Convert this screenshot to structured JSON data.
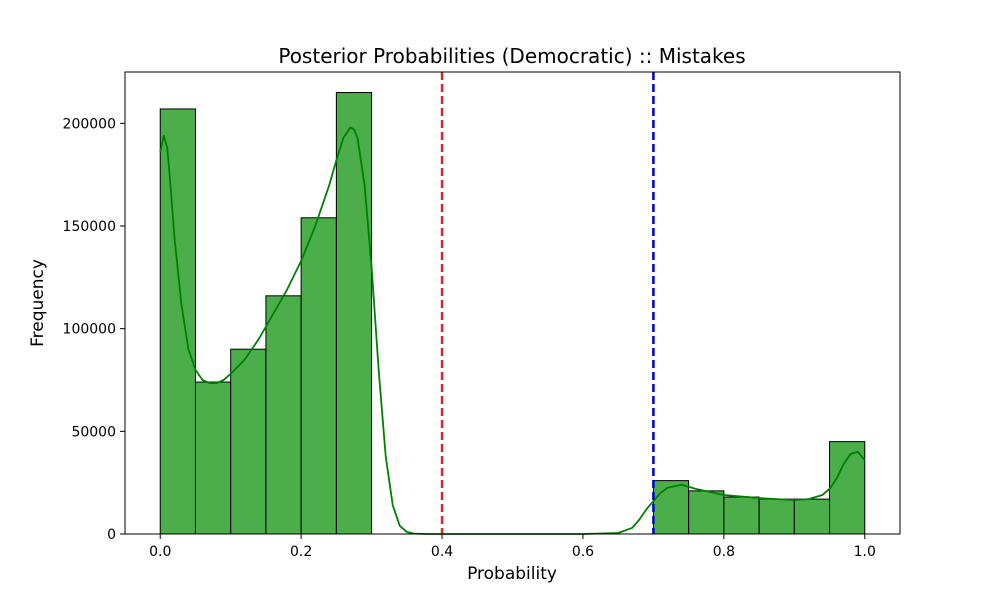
{
  "chart_data": {
    "type": "bar",
    "title": "Posterior Probabilities (Democratic) :: Mistakes",
    "xlabel": "Probability",
    "ylabel": "Frequency",
    "xlim": [
      -0.05,
      1.05
    ],
    "ylim": [
      0,
      225000
    ],
    "xticks": [
      0.0,
      0.2,
      0.4,
      0.6,
      0.8,
      1.0
    ],
    "xtick_labels": [
      "0.0",
      "0.2",
      "0.4",
      "0.6",
      "0.8",
      "1.0"
    ],
    "yticks": [
      0,
      50000,
      100000,
      150000,
      200000
    ],
    "ytick_labels": [
      "0",
      "50000",
      "100000",
      "150000",
      "200000"
    ],
    "bins": [
      {
        "x0": 0.0,
        "x1": 0.05,
        "value": 207000
      },
      {
        "x0": 0.05,
        "x1": 0.1,
        "value": 74000
      },
      {
        "x0": 0.1,
        "x1": 0.15,
        "value": 90000
      },
      {
        "x0": 0.15,
        "x1": 0.2,
        "value": 116000
      },
      {
        "x0": 0.2,
        "x1": 0.25,
        "value": 154000
      },
      {
        "x0": 0.25,
        "x1": 0.3,
        "value": 215000
      },
      {
        "x0": 0.7,
        "x1": 0.75,
        "value": 26000
      },
      {
        "x0": 0.75,
        "x1": 0.8,
        "value": 21000
      },
      {
        "x0": 0.8,
        "x1": 0.85,
        "value": 18000
      },
      {
        "x0": 0.85,
        "x1": 0.9,
        "value": 17000
      },
      {
        "x0": 0.9,
        "x1": 0.95,
        "value": 17000
      },
      {
        "x0": 0.95,
        "x1": 1.0,
        "value": 45000
      }
    ],
    "kde": {
      "x": [
        0.0,
        0.005,
        0.01,
        0.015,
        0.02,
        0.03,
        0.04,
        0.05,
        0.06,
        0.07,
        0.08,
        0.09,
        0.1,
        0.12,
        0.14,
        0.16,
        0.18,
        0.2,
        0.22,
        0.24,
        0.25,
        0.26,
        0.27,
        0.275,
        0.28,
        0.29,
        0.3,
        0.31,
        0.32,
        0.33,
        0.34,
        0.35,
        0.36,
        0.38,
        0.4,
        0.45,
        0.5,
        0.55,
        0.6,
        0.65,
        0.67,
        0.68,
        0.69,
        0.7,
        0.71,
        0.72,
        0.74,
        0.76,
        0.78,
        0.8,
        0.85,
        0.9,
        0.92,
        0.94,
        0.95,
        0.96,
        0.97,
        0.98,
        0.99,
        1.0
      ],
      "y": [
        186000,
        194000,
        188000,
        168000,
        145000,
        112000,
        90000,
        80000,
        75000,
        73500,
        73500,
        75000,
        78000,
        85000,
        95000,
        107000,
        119000,
        133000,
        150000,
        170000,
        182000,
        193000,
        198000,
        197000,
        193000,
        170000,
        130000,
        80000,
        38000,
        14000,
        4000,
        1000,
        200,
        0,
        0,
        0,
        0,
        0,
        0,
        500,
        3000,
        7000,
        12000,
        16000,
        20000,
        22500,
        24000,
        22000,
        20500,
        19000,
        17500,
        16500,
        17000,
        19000,
        22000,
        27000,
        34000,
        39000,
        40000,
        36000
      ]
    },
    "vlines": [
      {
        "x": 0.4,
        "color": "#d62728",
        "style": "dashed"
      },
      {
        "x": 0.7,
        "color": "#0000cc",
        "style": "dashed"
      }
    ],
    "colors": {
      "bar_fill": "#2ca02c",
      "bar_edge": "#000000",
      "kde": "#008000"
    },
    "grid": false,
    "legend": "none"
  }
}
